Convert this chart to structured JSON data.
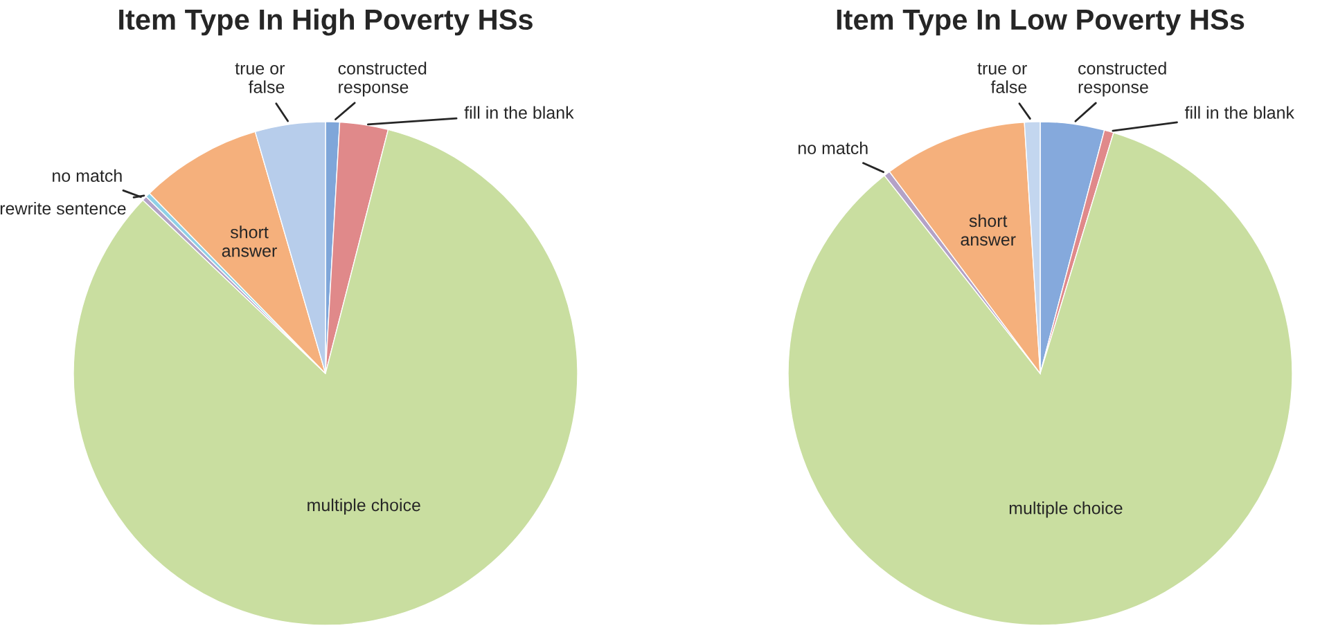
{
  "chart_data": [
    {
      "type": "pie",
      "title": "Item Type In High Poverty HSs",
      "categories": [
        "constructed response",
        "fill in the blank",
        "multiple choice",
        "no match",
        "rewrite sentence",
        "short answer",
        "true or false"
      ],
      "values": [
        0.9,
        3.1,
        83.1,
        0.3,
        0.3,
        7.8,
        4.5
      ],
      "colors": [
        "#7fa6d9",
        "#e0898a",
        "#c9dea0",
        "#b3a2c7",
        "#8fd0e6",
        "#f5b07c",
        "#b7cdeb"
      ]
    },
    {
      "type": "pie",
      "title": "Item Type In Low Poverty HSs",
      "categories": [
        "constructed response",
        "fill in the blank",
        "multiple choice",
        "no match",
        "short answer",
        "true or false"
      ],
      "values": [
        4.1,
        0.6,
        84.7,
        0.4,
        9.2,
        1.0
      ],
      "colors": [
        "#85a9dc",
        "#e0898a",
        "#c9dea0",
        "#b3a2c7",
        "#f5b07c",
        "#c3d6ef"
      ]
    }
  ]
}
